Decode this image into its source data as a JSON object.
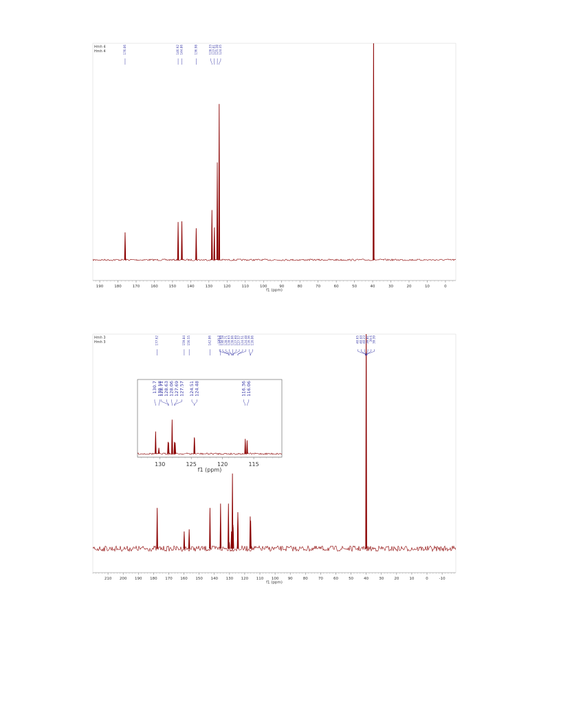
{
  "chart_data": [
    {
      "type": "nmr",
      "sample_labels": [
        "Hmh 4",
        "Hmh 4"
      ],
      "xlabel": "f1 (ppm)",
      "xlim": [
        193.8,
        -5.7
      ],
      "xticks": [
        190,
        180,
        170,
        160,
        150,
        140,
        130,
        120,
        110,
        100,
        90,
        80,
        70,
        60,
        50,
        40,
        30,
        20,
        10,
        0
      ],
      "ylim": [
        0,
        100
      ],
      "color": "#8b0000",
      "label_color": "#3a3aa8",
      "peak_labels": [
        176.06,
        146.92,
        144.86,
        136.98,
        128.33,
        127.01,
        125.38,
        124.35
      ],
      "x": [
        176.06,
        146.92,
        144.86,
        136.98,
        128.33,
        127.01,
        125.38,
        124.35,
        39.5
      ],
      "values": [
        12.7,
        17.5,
        17.8,
        14.6,
        23,
        15,
        45,
        72,
        110
      ]
    },
    {
      "type": "nmr",
      "sample_labels": [
        "Hmh 3",
        "Hmh 3"
      ],
      "xlabel": "f1 (ppm)",
      "xlim": [
        220,
        -19
      ],
      "xticks": [
        210,
        200,
        190,
        180,
        170,
        160,
        150,
        140,
        130,
        120,
        110,
        100,
        90,
        80,
        70,
        60,
        50,
        40,
        30,
        20,
        10,
        0,
        -10
      ],
      "ylim": [
        0,
        100
      ],
      "color": "#8b0000",
      "label_color": "#3a3aa8",
      "peak_labels": [
        177.62,
        159.84,
        156.55,
        142.86,
        135.89,
        130.7,
        130.18,
        128.71,
        128.63,
        128.06,
        127.69,
        127.57,
        124.51,
        124.48,
        116.36,
        116.06,
        40.65,
        40.44,
        40.23,
        39.81,
        39.6,
        39.39
      ],
      "x": [
        177.62,
        159.84,
        156.55,
        142.86,
        135.89,
        130.7,
        130.18,
        128.71,
        128.63,
        128.06,
        127.69,
        127.57,
        124.51,
        124.48,
        116.36,
        116.06,
        40.0
      ],
      "values": [
        19,
        8,
        9,
        19,
        21,
        21,
        3,
        8,
        7,
        35,
        11,
        10,
        17,
        16,
        15,
        13,
        110
      ],
      "inset": {
        "xlabel": "f1 (ppm)",
        "xlim": [
          133.6,
          110.5
        ],
        "xticks": [
          130,
          125,
          120,
          115
        ],
        "ylim": [
          0,
          100
        ],
        "peak_labels": [
          130.7,
          130.18,
          128.71,
          128.63,
          128.06,
          127.69,
          127.57,
          124.51,
          124.48,
          116.36,
          116.06
        ],
        "x": [
          130.7,
          130.18,
          128.71,
          128.63,
          128.06,
          127.69,
          127.57,
          124.51,
          124.48,
          116.36,
          116.06
        ],
        "values": [
          30,
          8,
          16,
          15,
          46,
          16,
          15,
          22,
          21,
          20,
          18
        ]
      }
    }
  ]
}
